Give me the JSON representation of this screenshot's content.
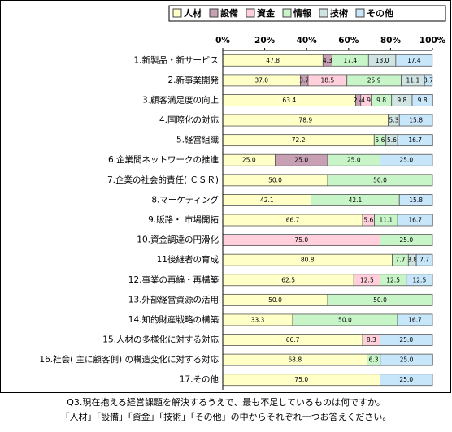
{
  "chart_data": {
    "type": "stacked_bar_h",
    "orientation": "horizontal",
    "categories": [
      "1.新製品・新サービス",
      "2.新事業開発",
      "3.顧客満足度の向上",
      "4.国際化の対応",
      "5.経営組織",
      "6.企業間ネットワークの推進",
      "7.企業の社会的責任( ＣＳＲ)",
      "8.マーケティング",
      "9.販路・ 市場開拓",
      "10.資金調達の円滑化",
      "11後継者の育成",
      "12.事業の再編・再構築",
      "13.外部経営資源の活用",
      "14.知的財産戦略の構築",
      "15.人材の多様化に対する対応",
      "16.社会( 主に顧客側) の構造変化に対する対応",
      "17.その他"
    ],
    "series": [
      {
        "name": "人材",
        "color": "#ffffc8",
        "values": [
          47.8,
          37.0,
          63.4,
          78.9,
          72.2,
          25.0,
          50.0,
          42.1,
          66.7,
          0,
          80.8,
          62.5,
          50.0,
          33.3,
          66.7,
          68.8,
          75.0
        ],
        "value_labels": [
          "47.8",
          "37.0",
          "63.4",
          "78.9",
          "72.2",
          "25.0",
          "50.0",
          "42.1",
          "66.7",
          null,
          "80.8",
          "62.5",
          "50.0",
          "33.3",
          "66.7",
          "68.8",
          "75.0"
        ]
      },
      {
        "name": "設備",
        "color": "#c8a0b4",
        "values": [
          4.3,
          3.7,
          2.4,
          0,
          0,
          25.0,
          0,
          0,
          0,
          0,
          0,
          0,
          0,
          0,
          0,
          0,
          0
        ],
        "value_labels": [
          "4.3",
          "3.7",
          "2.4",
          null,
          null,
          "25.0",
          null,
          null,
          null,
          null,
          null,
          null,
          null,
          null,
          null,
          null,
          null
        ]
      },
      {
        "name": "資金",
        "color": "#ffd0dc",
        "values": [
          0,
          18.5,
          4.9,
          0,
          0,
          0,
          0,
          0,
          5.6,
          75.0,
          0,
          12.5,
          0,
          0,
          8.3,
          0,
          0
        ],
        "value_labels": [
          null,
          "18.5",
          "4.9",
          null,
          null,
          null,
          null,
          null,
          "5.6",
          "75.0",
          null,
          "12.5",
          null,
          null,
          "8.3",
          null,
          null
        ]
      },
      {
        "name": "情報",
        "color": "#c8f5c8",
        "values": [
          17.4,
          25.9,
          9.8,
          0,
          5.6,
          25.0,
          50.0,
          42.1,
          11.1,
          25.0,
          7.7,
          12.5,
          50.0,
          50.0,
          0,
          6.3,
          0
        ],
        "value_labels": [
          "17.4",
          "25.9",
          "9.8",
          null,
          "5.6",
          "25.0",
          "50.0",
          "42.1",
          "11.1",
          "25.0",
          "7.7",
          "12.5",
          "50.0",
          "50.0",
          null,
          "6.3",
          null
        ]
      },
      {
        "name": "技術",
        "color": "#d0e4e4",
        "values": [
          13.0,
          11.1,
          9.8,
          5.3,
          5.6,
          0,
          0,
          0,
          0,
          0,
          3.8,
          0,
          0,
          0,
          0,
          0,
          0
        ],
        "value_labels": [
          "13.0",
          "11.1",
          "9.8",
          "5.3",
          "5.6",
          null,
          null,
          null,
          null,
          null,
          "3.8",
          null,
          null,
          null,
          null,
          null,
          null
        ]
      },
      {
        "name": "その他",
        "color": "#c8e6fa",
        "values": [
          17.4,
          3.7,
          9.8,
          15.8,
          16.7,
          25.0,
          0,
          15.8,
          16.7,
          0,
          7.7,
          12.5,
          0,
          16.7,
          25.0,
          25.0,
          25.0
        ],
        "value_labels": [
          "17.4",
          "3.7",
          "9.8",
          "15.8",
          "16.7",
          "25.0",
          null,
          "15.8",
          "16.7",
          null,
          "7.7",
          "12.5",
          null,
          "16.7",
          "25.0",
          "25.0",
          "25.0"
        ]
      }
    ],
    "xlim": [
      0,
      100
    ],
    "xticks": [
      {
        "value": 0,
        "label": "0%"
      },
      {
        "value": 20,
        "label": "20%"
      },
      {
        "value": 40,
        "label": "40%"
      },
      {
        "value": 60,
        "label": "60%"
      },
      {
        "value": 80,
        "label": "80%"
      },
      {
        "value": 100,
        "label": "100%"
      }
    ],
    "legend_position": "top-right",
    "footnote": [
      "Q3.現在抱える経営課題を解決するうえで、最も不足しているものは何ですか。",
      "「人材」「設備」「資金」「技術」「その他」の中からそれぞれ一つお答えください。"
    ]
  }
}
